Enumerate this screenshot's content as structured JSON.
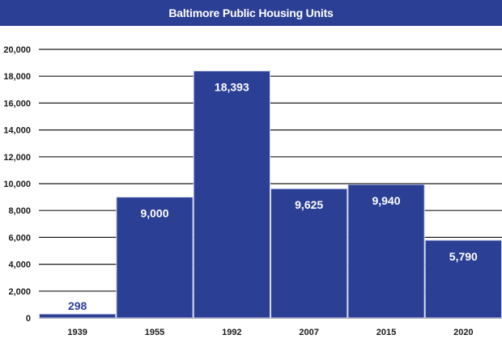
{
  "chart_data": {
    "type": "bar",
    "title": "Baltimore Public Housing Units",
    "xlabel": "",
    "ylabel": "",
    "categories": [
      "1939",
      "1955",
      "1992",
      "2007",
      "2015",
      "2020"
    ],
    "values": [
      298,
      9000,
      18393,
      9625,
      9940,
      5790
    ],
    "data_labels": [
      "298",
      "9,000",
      "18,393",
      "9,625",
      "9,940",
      "5,790"
    ],
    "ylim": [
      0,
      20000
    ],
    "yticks": [
      0,
      2000,
      4000,
      6000,
      8000,
      10000,
      12000,
      14000,
      16000,
      18000,
      20000
    ],
    "ytick_labels": [
      "0",
      "2,000",
      "4,000",
      "6,000",
      "8,000",
      "10,000",
      "12,000",
      "14,000",
      "16,000",
      "18,000",
      "20,000"
    ],
    "grid": true,
    "legend": "none",
    "colors": {
      "bar": "#2b3f95",
      "title_bg": "#2b3f95",
      "grid": "#1a1a1a"
    }
  }
}
